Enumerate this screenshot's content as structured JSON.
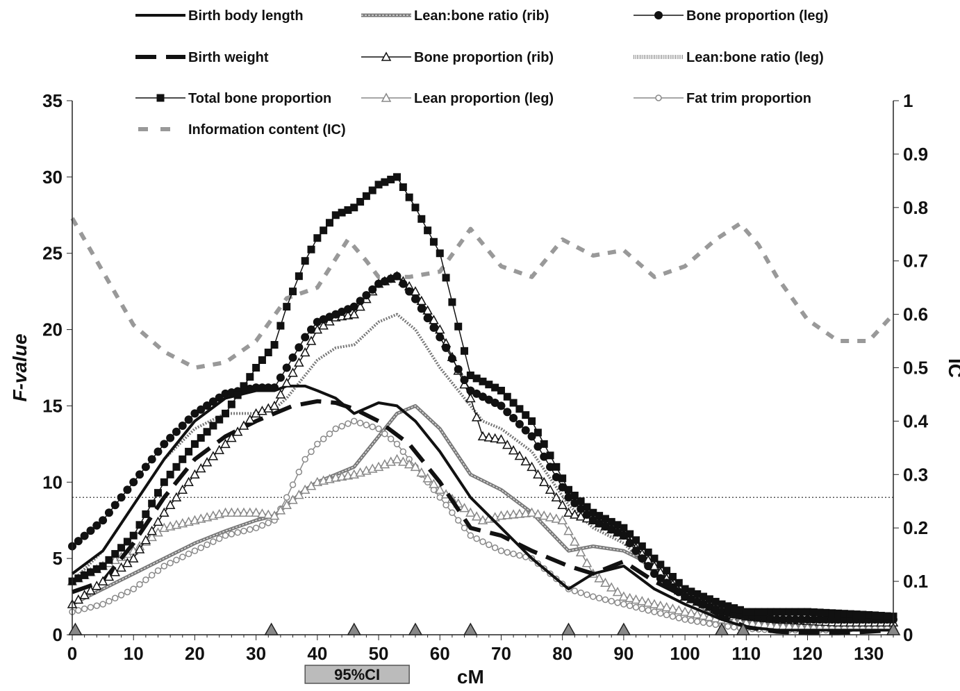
{
  "chart_data": {
    "type": "line",
    "title": "",
    "xlabel": "cM",
    "ylabel_left": "F-value",
    "ylabel_right": "IC",
    "xlim": [
      0,
      134
    ],
    "ylim_left": [
      0,
      35
    ],
    "ylim_right": [
      0,
      1
    ],
    "x_ticks": [
      0,
      10,
      20,
      30,
      40,
      50,
      60,
      70,
      80,
      90,
      100,
      110,
      120,
      130
    ],
    "y_left_ticks": [
      0,
      5,
      10,
      15,
      20,
      25,
      30,
      35
    ],
    "y_right_ticks": [
      "0",
      "0.1",
      "0.2",
      "0.3",
      "0.4",
      "0.5",
      "0.6",
      "0.7",
      "0.8",
      "0.9",
      "1"
    ],
    "threshold": 9.0,
    "marker_positions": [
      0.5,
      32.5,
      46,
      56,
      65,
      81,
      90,
      106,
      109.5,
      134
    ],
    "ci_label": "95%CI",
    "ci_range": [
      38,
      55
    ],
    "grid": false,
    "legend_position": "top",
    "series": [
      {
        "name": "Birth body length",
        "axis": "left",
        "color": "#111111",
        "style": "thick-solid",
        "marker": "none",
        "x": [
          0,
          5,
          10,
          15,
          20,
          25,
          30,
          33,
          35,
          38,
          40,
          43,
          46,
          50,
          53,
          56,
          60,
          65,
          70,
          75,
          81,
          85,
          90,
          95,
          100,
          106,
          110,
          115,
          120,
          125,
          130,
          134
        ],
        "y": [
          4.0,
          5.5,
          8.5,
          11.5,
          14.0,
          15.5,
          16.0,
          16.0,
          16.3,
          16.3,
          16.0,
          15.5,
          14.5,
          15.2,
          15.0,
          14.0,
          12.0,
          9.0,
          7.0,
          5.0,
          3.0,
          4.0,
          4.5,
          3.0,
          2.0,
          1.0,
          0.5,
          0.3,
          0.3,
          0.3,
          0.3,
          0.3
        ]
      },
      {
        "name": "Birth weight",
        "axis": "left",
        "color": "#111111",
        "style": "long-dash",
        "marker": "none",
        "x": [
          0,
          5,
          10,
          15,
          20,
          25,
          30,
          33,
          36,
          40,
          43,
          46,
          50,
          55,
          60,
          65,
          70,
          75,
          81,
          85,
          90,
          95,
          100,
          106,
          110,
          115,
          120,
          125,
          130,
          134
        ],
        "y": [
          2.8,
          3.5,
          6.0,
          9.0,
          11.5,
          13.0,
          14.0,
          14.5,
          15.0,
          15.3,
          15.2,
          14.8,
          14.0,
          12.5,
          10.0,
          7.0,
          6.5,
          5.5,
          4.5,
          4.0,
          4.8,
          3.5,
          2.5,
          1.2,
          0.5,
          0.2,
          0.1,
          0.1,
          0.2,
          0.3
        ]
      },
      {
        "name": "Total bone proportion",
        "axis": "left",
        "color": "#111111",
        "style": "thin-solid",
        "marker": "filled-square",
        "x": [
          0,
          5,
          10,
          15,
          20,
          25,
          30,
          33,
          35,
          38,
          40,
          43,
          46,
          50,
          53,
          56,
          60,
          65,
          70,
          75,
          81,
          85,
          90,
          95,
          100,
          106,
          110,
          115,
          120,
          125,
          130,
          134
        ],
        "y": [
          3.5,
          4.5,
          6.5,
          10.0,
          12.5,
          14.5,
          17.5,
          19.0,
          21.5,
          24.5,
          26.0,
          27.5,
          28.0,
          29.5,
          30.0,
          28.0,
          25.0,
          17.0,
          16.0,
          14.0,
          9.5,
          8.0,
          7.0,
          5.0,
          3.0,
          2.0,
          1.5,
          1.5,
          1.5,
          1.4,
          1.3,
          1.2
        ]
      },
      {
        "name": "Information content (IC)",
        "axis": "right",
        "color": "#999999",
        "style": "short-dash",
        "marker": "none",
        "x": [
          0,
          5,
          10,
          15,
          20,
          25,
          30,
          35,
          40,
          45,
          48,
          50,
          52,
          55,
          60,
          65,
          70,
          75,
          80,
          85,
          90,
          95,
          100,
          105,
          109,
          112,
          115,
          120,
          125,
          130,
          134
        ],
        "y": [
          0.78,
          0.68,
          0.58,
          0.53,
          0.5,
          0.51,
          0.55,
          0.63,
          0.65,
          0.74,
          0.7,
          0.67,
          0.67,
          0.67,
          0.68,
          0.76,
          0.69,
          0.67,
          0.74,
          0.71,
          0.72,
          0.67,
          0.69,
          0.74,
          0.77,
          0.73,
          0.67,
          0.59,
          0.55,
          0.55,
          0.6
        ]
      },
      {
        "name": "Lean:bone ratio (rib)",
        "axis": "left",
        "color": "#888888",
        "style": "double-gray",
        "marker": "none",
        "x": [
          0,
          5,
          10,
          15,
          20,
          25,
          30,
          33,
          35,
          38,
          40,
          43,
          46,
          50,
          53,
          56,
          60,
          65,
          70,
          75,
          81,
          85,
          90,
          95,
          100,
          106,
          110,
          115,
          120,
          125,
          130,
          134
        ],
        "y": [
          2.0,
          3.0,
          4.0,
          5.0,
          6.0,
          6.8,
          7.5,
          7.8,
          8.5,
          9.5,
          10.0,
          10.5,
          11.0,
          13.0,
          14.5,
          15.0,
          13.5,
          10.5,
          9.5,
          8.0,
          5.5,
          5.8,
          5.5,
          4.5,
          2.5,
          1.0,
          0.8,
          0.6,
          0.5,
          0.5,
          0.6,
          0.8
        ]
      },
      {
        "name": "Bone proportion (rib)",
        "axis": "left",
        "color": "#111111",
        "style": "thin-solid",
        "marker": "open-triangle",
        "x": [
          0,
          5,
          10,
          15,
          20,
          25,
          30,
          33,
          35,
          38,
          40,
          43,
          46,
          50,
          53,
          56,
          60,
          65,
          67,
          70,
          75,
          81,
          85,
          90,
          95,
          100,
          106,
          110,
          115,
          120,
          125,
          130,
          134
        ],
        "y": [
          2.0,
          3.5,
          5.0,
          8.0,
          10.5,
          12.5,
          14.5,
          15.0,
          16.5,
          18.5,
          20.0,
          20.8,
          21.0,
          23.0,
          23.5,
          22.5,
          20.0,
          15.5,
          13.0,
          12.8,
          11.0,
          8.0,
          7.5,
          6.5,
          4.5,
          2.5,
          1.5,
          1.2,
          1.0,
          0.9,
          0.8,
          0.8,
          0.8
        ]
      },
      {
        "name": "Lean proportion (leg)",
        "axis": "left",
        "color": "#888888",
        "style": "thin-solid",
        "marker": "open-triangle",
        "x": [
          0,
          5,
          10,
          15,
          20,
          25,
          30,
          33,
          35,
          38,
          40,
          43,
          46,
          50,
          53,
          56,
          60,
          65,
          67,
          70,
          75,
          80,
          85,
          90,
          95,
          100,
          106,
          110,
          115,
          120,
          125,
          130,
          134
        ],
        "y": [
          3.5,
          4.5,
          5.5,
          7.0,
          7.5,
          8.0,
          8.0,
          7.8,
          8.5,
          9.5,
          10.0,
          10.3,
          10.5,
          11.0,
          11.5,
          11.0,
          9.5,
          8.0,
          7.5,
          7.8,
          8.0,
          7.5,
          4.0,
          2.5,
          2.0,
          1.5,
          1.0,
          0.8,
          0.6,
          0.5,
          0.5,
          0.5,
          0.5
        ]
      },
      {
        "name": "Bone proportion (leg)",
        "axis": "left",
        "color": "#111111",
        "style": "thin-solid",
        "marker": "filled-circle",
        "x": [
          0,
          5,
          10,
          15,
          20,
          25,
          30,
          33,
          35,
          38,
          40,
          43,
          46,
          50,
          53,
          56,
          60,
          65,
          70,
          75,
          81,
          85,
          90,
          95,
          100,
          106,
          110,
          115,
          120,
          125,
          130,
          134
        ],
        "y": [
          5.8,
          7.5,
          10.0,
          12.5,
          14.5,
          15.8,
          16.2,
          16.2,
          17.5,
          19.5,
          20.5,
          21.0,
          21.5,
          23.0,
          23.5,
          22.0,
          19.5,
          16.0,
          15.0,
          13.0,
          9.0,
          7.5,
          6.5,
          4.0,
          2.5,
          1.5,
          1.2,
          1.0,
          1.0,
          1.0,
          1.0,
          1.0
        ]
      },
      {
        "name": "Lean:bone ratio (leg)",
        "axis": "left",
        "color": "#777777",
        "style": "dotted-gray",
        "marker": "none",
        "x": [
          0,
          5,
          10,
          15,
          20,
          25,
          30,
          33,
          35,
          38,
          40,
          43,
          46,
          50,
          53,
          56,
          60,
          65,
          67,
          70,
          75,
          81,
          85,
          90,
          95,
          100,
          106,
          110,
          115,
          120,
          125,
          130,
          134
        ],
        "y": [
          3.5,
          5.5,
          8.5,
          11.5,
          13.5,
          14.5,
          14.5,
          14.8,
          15.5,
          17.0,
          18.0,
          18.8,
          19.0,
          20.5,
          21.0,
          20.0,
          17.5,
          15.0,
          14.0,
          13.5,
          12.0,
          8.5,
          7.0,
          6.0,
          4.0,
          2.5,
          1.5,
          1.2,
          1.0,
          0.9,
          0.8,
          0.8,
          0.8
        ]
      },
      {
        "name": "Fat trim proportion",
        "axis": "left",
        "color": "#888888",
        "style": "thin-solid",
        "marker": "open-circle",
        "x": [
          0,
          5,
          10,
          15,
          20,
          25,
          30,
          33,
          35,
          38,
          40,
          43,
          46,
          50,
          53,
          56,
          60,
          65,
          70,
          75,
          81,
          85,
          90,
          95,
          100,
          106,
          110,
          115,
          120,
          125,
          130,
          134
        ],
        "y": [
          1.5,
          2.0,
          3.0,
          4.5,
          5.5,
          6.5,
          7.0,
          7.5,
          9.0,
          11.5,
          12.5,
          13.5,
          14.0,
          13.5,
          12.5,
          11.0,
          9.0,
          6.5,
          5.5,
          5.0,
          3.0,
          2.5,
          2.0,
          1.5,
          1.0,
          0.6,
          0.4,
          0.3,
          0.3,
          0.3,
          0.5,
          1.0
        ]
      }
    ],
    "legend": [
      {
        "series": "Birth body length",
        "col": 0,
        "row": 0
      },
      {
        "series": "Lean:bone ratio (rib)",
        "col": 1,
        "row": 0
      },
      {
        "series": "Bone proportion (leg)",
        "col": 2,
        "row": 0
      },
      {
        "series": "Birth weight",
        "col": 0,
        "row": 1
      },
      {
        "series": "Bone proportion (rib)",
        "col": 1,
        "row": 1
      },
      {
        "series": "Lean:bone ratio (leg)",
        "col": 2,
        "row": 1
      },
      {
        "series": "Total bone proportion",
        "col": 0,
        "row": 2
      },
      {
        "series": "Lean proportion (leg)",
        "col": 1,
        "row": 2
      },
      {
        "series": "Fat trim proportion",
        "col": 2,
        "row": 2
      },
      {
        "series": "Information content (IC)",
        "col": 0,
        "row": 3
      }
    ]
  }
}
